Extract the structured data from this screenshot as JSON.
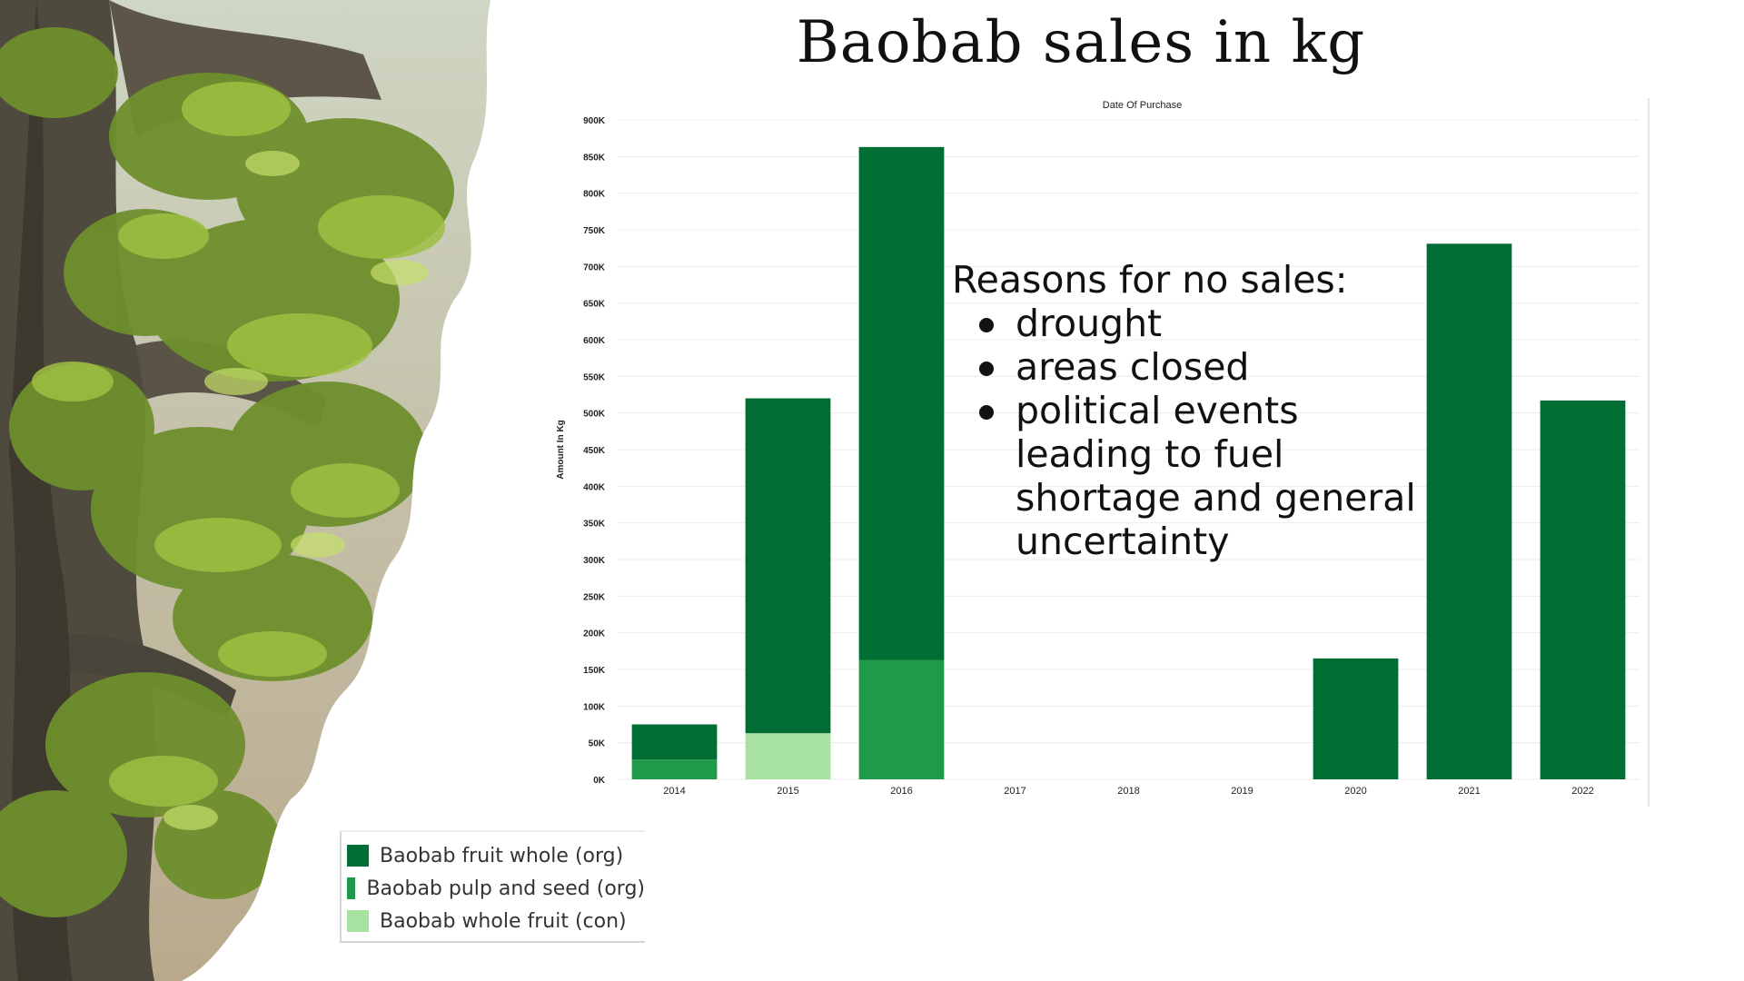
{
  "title": "Baobab sales in kg",
  "annotation": {
    "heading": "Reasons for no sales:",
    "items": [
      "drought",
      "areas closed",
      "political events leading to fuel shortage and general uncertainty"
    ]
  },
  "colors": {
    "fruit_whole_org": "#006d35",
    "pulp_seed_org": "#21994b",
    "whole_fruit_con": "#a7e2a0",
    "grid": "#ececec",
    "axis_text": "#222222"
  },
  "chart_data": {
    "type": "bar",
    "stacked": true,
    "title": "",
    "top_axis_label": "Date Of Purchase",
    "xlabel": "",
    "ylabel": "Amount In Kg",
    "categories": [
      "2014",
      "2015",
      "2016",
      "2017",
      "2018",
      "2019",
      "2020",
      "2021",
      "2022"
    ],
    "ylim": [
      0,
      900000
    ],
    "yticks": [
      0,
      50000,
      100000,
      150000,
      200000,
      250000,
      300000,
      350000,
      400000,
      450000,
      500000,
      550000,
      600000,
      650000,
      700000,
      750000,
      800000,
      850000,
      900000
    ],
    "ytick_labels": [
      "0K",
      "50K",
      "100K",
      "150K",
      "200K",
      "250K",
      "300K",
      "350K",
      "400K",
      "450K",
      "500K",
      "550K",
      "600K",
      "650K",
      "700K",
      "750K",
      "800K",
      "850K",
      "900K"
    ],
    "grid": true,
    "legend_position": "bottom-left",
    "series": [
      {
        "name": "Baobab fruit whole (org)",
        "color": "#006d35",
        "values": [
          48000,
          457000,
          700000,
          0,
          0,
          0,
          165000,
          731000,
          517000
        ]
      },
      {
        "name": "Baobab pulp and seed (org)",
        "color": "#21994b",
        "values": [
          27000,
          0,
          163000,
          0,
          0,
          0,
          0,
          0,
          0
        ]
      },
      {
        "name": "Baobab whole fruit (con)",
        "color": "#a7e2a0",
        "values": [
          0,
          63000,
          0,
          0,
          0,
          0,
          0,
          0,
          0
        ]
      }
    ]
  }
}
